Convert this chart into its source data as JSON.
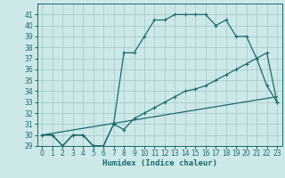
{
  "xlabel": "Humidex (Indice chaleur)",
  "xlim": [
    -0.5,
    23.5
  ],
  "ylim": [
    29,
    42
  ],
  "yticks": [
    29,
    30,
    31,
    32,
    33,
    34,
    35,
    36,
    37,
    38,
    39,
    40,
    41
  ],
  "xticks": [
    0,
    1,
    2,
    3,
    4,
    5,
    6,
    7,
    8,
    9,
    10,
    11,
    12,
    13,
    14,
    15,
    16,
    17,
    18,
    19,
    20,
    21,
    22,
    23
  ],
  "bg_color": "#cce8e8",
  "grid_color": "#aacccc",
  "line_color": "#1a6b6b",
  "line1_x": [
    0,
    1,
    2,
    3,
    4,
    5,
    6,
    7,
    8,
    9,
    10,
    11,
    12,
    13,
    14,
    15,
    16,
    17,
    18,
    19,
    20,
    21,
    22,
    23
  ],
  "line1_y": [
    30,
    30,
    29,
    30,
    30,
    29,
    29,
    31,
    37.5,
    37.5,
    39,
    40.5,
    40.5,
    41,
    41,
    41,
    41,
    40,
    40.5,
    39,
    39,
    37,
    34.5,
    33
  ],
  "line2_x": [
    0,
    1,
    2,
    3,
    4,
    5,
    6,
    7,
    8,
    9,
    10,
    11,
    12,
    13,
    14,
    15,
    16,
    17,
    18,
    19,
    20,
    21,
    22,
    23
  ],
  "line2_y": [
    30,
    30,
    29,
    30,
    30,
    29,
    29,
    31,
    30.5,
    31.5,
    32,
    32.5,
    33,
    33.5,
    34,
    34.2,
    34.5,
    35,
    35.5,
    36,
    36.5,
    37,
    37.5,
    33
  ],
  "line3_x": [
    0,
    23
  ],
  "line3_y": [
    30,
    33.5
  ]
}
